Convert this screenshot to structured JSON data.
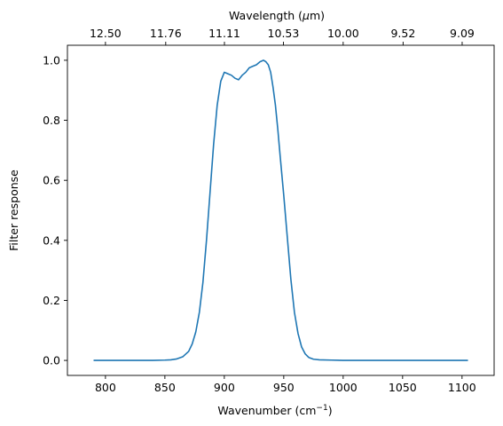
{
  "chart_data": {
    "type": "line",
    "xlabel": "Wavenumber (cm",
    "xlabel_sup": "−1",
    "xlabel_close": ")",
    "ylabel": "Filter response",
    "top_xlabel": "Wavelength (",
    "top_xlabel_mu": "μ",
    "top_xlabel_close": "m)",
    "xlim": [
      768,
      1127
    ],
    "ylim": [
      -0.05,
      1.05
    ],
    "xticks": [
      800,
      850,
      900,
      950,
      1000,
      1050,
      1100
    ],
    "xtick_labels": [
      "800",
      "850",
      "900",
      "950",
      "1000",
      "1050",
      "1100"
    ],
    "yticks": [
      0.0,
      0.2,
      0.4,
      0.6,
      0.8,
      1.0
    ],
    "ytick_labels": [
      "0.0",
      "0.2",
      "0.4",
      "0.6",
      "0.8",
      "1.0"
    ],
    "top_ticks": [
      800,
      850.7,
      900.1,
      949.7,
      1000,
      1050.4,
      1100.1
    ],
    "top_tick_labels": [
      "12.50",
      "11.76",
      "11.11",
      "10.53",
      "10.00",
      "9.52",
      "9.09"
    ],
    "grid": false,
    "line_color": "#1f77b4",
    "series": [
      {
        "x": [
          790,
          800,
          820,
          840,
          850,
          855,
          860,
          865,
          870,
          873,
          876,
          879,
          882,
          885,
          888,
          891,
          894,
          897,
          900,
          903,
          906,
          909,
          912,
          915,
          918,
          921,
          924,
          927,
          930,
          933,
          935,
          937,
          939,
          941,
          943,
          945,
          947,
          950,
          953,
          956,
          959,
          962,
          965,
          968,
          971,
          975,
          980,
          990,
          1000,
          1050,
          1105
        ],
        "y": [
          0.0,
          0.0,
          0.0,
          0.0,
          0.001,
          0.002,
          0.005,
          0.012,
          0.03,
          0.055,
          0.095,
          0.16,
          0.26,
          0.4,
          0.56,
          0.72,
          0.85,
          0.93,
          0.96,
          0.955,
          0.95,
          0.94,
          0.935,
          0.95,
          0.96,
          0.975,
          0.98,
          0.985,
          0.995,
          1.0,
          0.995,
          0.985,
          0.96,
          0.91,
          0.85,
          0.77,
          0.68,
          0.55,
          0.41,
          0.27,
          0.16,
          0.09,
          0.045,
          0.022,
          0.01,
          0.004,
          0.002,
          0.001,
          0.0,
          0.0,
          0.0
        ]
      }
    ]
  }
}
